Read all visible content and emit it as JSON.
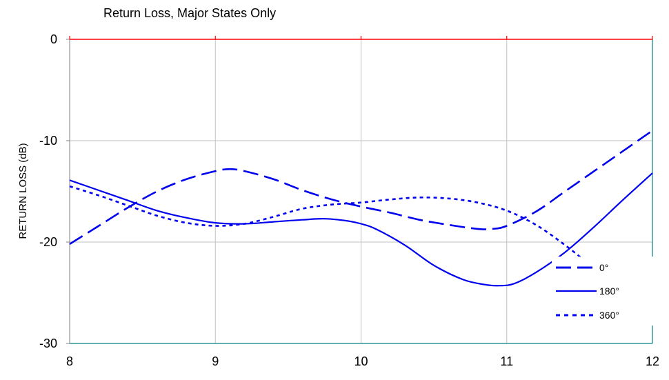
{
  "chart_data": {
    "type": "line",
    "title": "Return Loss, Major States Only",
    "xlabel": "",
    "ylabel": "RETURN LOSS (dB)",
    "xlim": [
      8,
      12
    ],
    "ylim": [
      -30,
      0
    ],
    "x_ticks": [
      8,
      9,
      10,
      11,
      12
    ],
    "y_ticks": [
      0,
      -10,
      -20,
      -30
    ],
    "grid": true,
    "legend_position": "bottom-right",
    "colors": {
      "line": "#0000ee",
      "grid": "#c0c0c0",
      "top_border": "#ff0000",
      "right_border": "#008080"
    },
    "series": [
      {
        "name": "0°",
        "style": "dashed",
        "x": [
          8.0,
          8.2,
          8.4,
          8.6,
          8.8,
          9.0,
          9.1,
          9.2,
          9.4,
          9.6,
          9.8,
          10.0,
          10.2,
          10.4,
          10.6,
          10.8,
          10.9,
          11.0,
          11.2,
          11.4,
          11.6,
          11.8,
          12.0
        ],
        "values": [
          -20.2,
          -18.4,
          -16.6,
          -15.0,
          -13.8,
          -13.0,
          -12.8,
          -13.0,
          -13.8,
          -14.9,
          -15.8,
          -16.5,
          -17.1,
          -17.8,
          -18.3,
          -18.7,
          -18.7,
          -18.4,
          -17.0,
          -15.0,
          -13.0,
          -11.0,
          -9.0
        ]
      },
      {
        "name": "180°",
        "style": "solid",
        "x": [
          8.0,
          8.2,
          8.4,
          8.6,
          8.8,
          9.0,
          9.2,
          9.4,
          9.6,
          9.75,
          9.9,
          10.0,
          10.1,
          10.3,
          10.5,
          10.7,
          10.85,
          10.95,
          11.05,
          11.2,
          11.4,
          11.6,
          11.8,
          12.0
        ],
        "values": [
          -13.9,
          -14.9,
          -15.9,
          -16.9,
          -17.6,
          -18.1,
          -18.2,
          -18.0,
          -17.8,
          -17.7,
          -17.9,
          -18.2,
          -18.7,
          -20.3,
          -22.3,
          -23.7,
          -24.2,
          -24.3,
          -24.1,
          -23.0,
          -21.0,
          -18.5,
          -15.8,
          -13.2
        ]
      },
      {
        "name": "360°",
        "style": "dotted",
        "x": [
          8.0,
          8.2,
          8.4,
          8.6,
          8.8,
          9.0,
          9.2,
          9.4,
          9.6,
          9.8,
          10.0,
          10.2,
          10.4,
          10.6,
          10.8,
          11.0,
          11.2,
          11.4,
          11.6,
          11.8,
          12.0
        ],
        "values": [
          -14.5,
          -15.4,
          -16.4,
          -17.4,
          -18.1,
          -18.4,
          -18.2,
          -17.5,
          -16.7,
          -16.3,
          -16.1,
          -15.8,
          -15.6,
          -15.7,
          -16.1,
          -16.9,
          -18.3,
          -20.3,
          -22.6,
          -25.0,
          -27.5
        ]
      }
    ]
  }
}
